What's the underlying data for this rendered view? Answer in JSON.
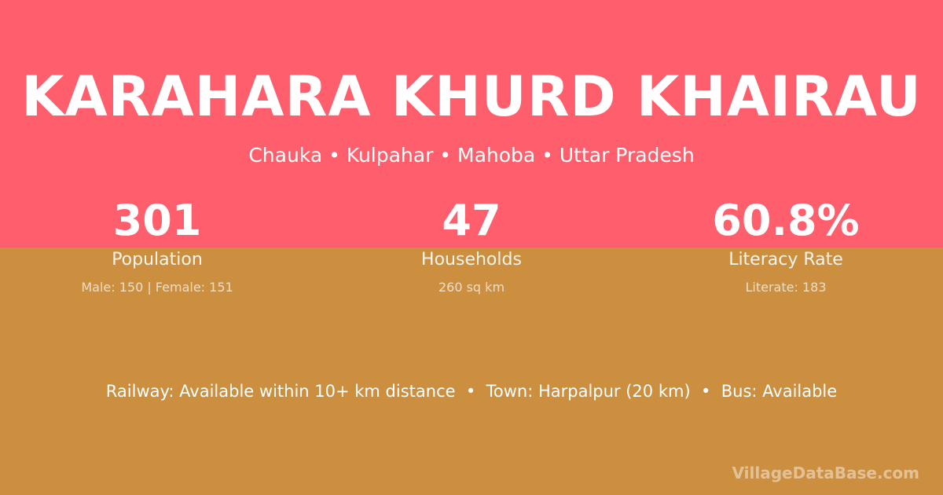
{
  "header": {
    "title": "KARAHARA KHURD KHAIRAU",
    "subtitle": "Chauka • Kulpahar • Mahoba • Uttar Pradesh"
  },
  "stats": [
    {
      "value": "301",
      "label": "Population",
      "detail": "Male: 150 | Female: 151"
    },
    {
      "value": "47",
      "label": "Households",
      "detail": "260 sq km"
    },
    {
      "value": "60.8%",
      "label": "Literacy Rate",
      "detail": "Literate: 183"
    }
  ],
  "facilities": "Railway: Available within 10+ km distance  •  Town: Harpalpur (20 km)  •  Bus: Available",
  "footer": "VillageDataBase.com"
}
